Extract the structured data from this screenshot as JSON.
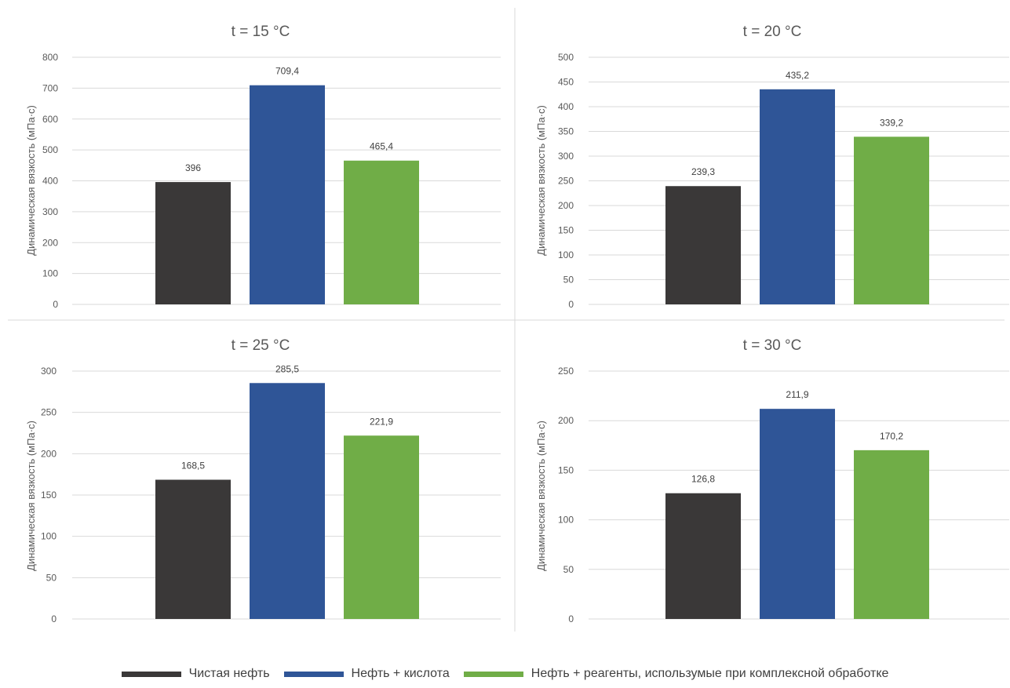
{
  "colors": [
    "#3a3838",
    "#2f5597",
    "#70ad47"
  ],
  "legend": [
    {
      "label": "Чистая нефть",
      "color": "#3a3838"
    },
    {
      "label": "Нефть + кислота",
      "color": "#2f5597"
    },
    {
      "label": "Нефть + реагенты, использумые при комплексной обработке",
      "color": "#70ad47"
    }
  ],
  "chart_data": [
    {
      "type": "bar",
      "title": "t = 15 °C",
      "ylabel": "Динамическая вязкость (мПа·с)",
      "categories": [
        "Чистая нефть",
        "Нефть + кислота",
        "Нефть + реагенты, использумые при комплексной обработке"
      ],
      "values": [
        396,
        709.4,
        465.4
      ],
      "value_labels": [
        "396",
        "709,4",
        "465,4"
      ],
      "ylim": [
        0,
        800
      ],
      "yticks": [
        0,
        100,
        200,
        300,
        400,
        500,
        600,
        700,
        800
      ],
      "grid": true
    },
    {
      "type": "bar",
      "title": "t = 20 °C",
      "ylabel": "Динамическая вязкость (мПа·с)",
      "categories": [
        "Чистая нефть",
        "Нефть + кислота",
        "Нефть + реагенты, использумые при комплексной обработке"
      ],
      "values": [
        239.3,
        435.2,
        339.2
      ],
      "value_labels": [
        "239,3",
        "435,2",
        "339,2"
      ],
      "ylim": [
        0,
        500
      ],
      "yticks": [
        0,
        50,
        100,
        150,
        200,
        250,
        300,
        350,
        400,
        450,
        500
      ],
      "grid": true
    },
    {
      "type": "bar",
      "title": "t = 25 °C",
      "ylabel": "Динамическая вязкость (мПа·с)",
      "categories": [
        "Чистая нефть",
        "Нефть + кислота",
        "Нефть + реагенты, использумые при комплексной обработке"
      ],
      "values": [
        168.5,
        285.5,
        221.9
      ],
      "value_labels": [
        "168,5",
        "285,5",
        "221,9"
      ],
      "ylim": [
        0,
        300
      ],
      "yticks": [
        0,
        50,
        100,
        150,
        200,
        250,
        300
      ],
      "grid": true
    },
    {
      "type": "bar",
      "title": "t = 30 °C",
      "ylabel": "Динамическая вязкость (мПа·с)",
      "categories": [
        "Чистая нефть",
        "Нефть + кислота",
        "Нефть + реагенты, использумые при комплексной обработке"
      ],
      "values": [
        126.8,
        211.9,
        170.2
      ],
      "value_labels": [
        "126,8",
        "211,9",
        "170,2"
      ],
      "ylim": [
        0,
        250
      ],
      "yticks": [
        0,
        50,
        100,
        150,
        200,
        250
      ],
      "grid": true
    }
  ]
}
